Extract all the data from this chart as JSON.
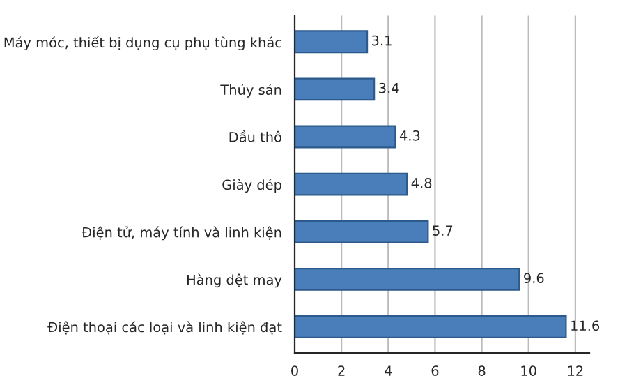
{
  "chart_data": {
    "type": "bar",
    "orientation": "horizontal",
    "categories": [
      "Máy móc, thiết bị dụng cụ phụ tùng khác",
      "Thủy sản",
      "Dầu thô",
      "Giày dép",
      "Điện tử, máy tính và linh kiện",
      "Hàng dệt may",
      "Điện thoại các loại và linh kiện đạt"
    ],
    "values": [
      3.1,
      3.4,
      4.3,
      4.8,
      5.7,
      9.6,
      11.6
    ],
    "color": "#4a7ebb",
    "data_labels": true,
    "xlim": [
      0,
      12.6
    ],
    "xticks": [
      0,
      2,
      4,
      6,
      8,
      10,
      12
    ],
    "grid": "x"
  }
}
